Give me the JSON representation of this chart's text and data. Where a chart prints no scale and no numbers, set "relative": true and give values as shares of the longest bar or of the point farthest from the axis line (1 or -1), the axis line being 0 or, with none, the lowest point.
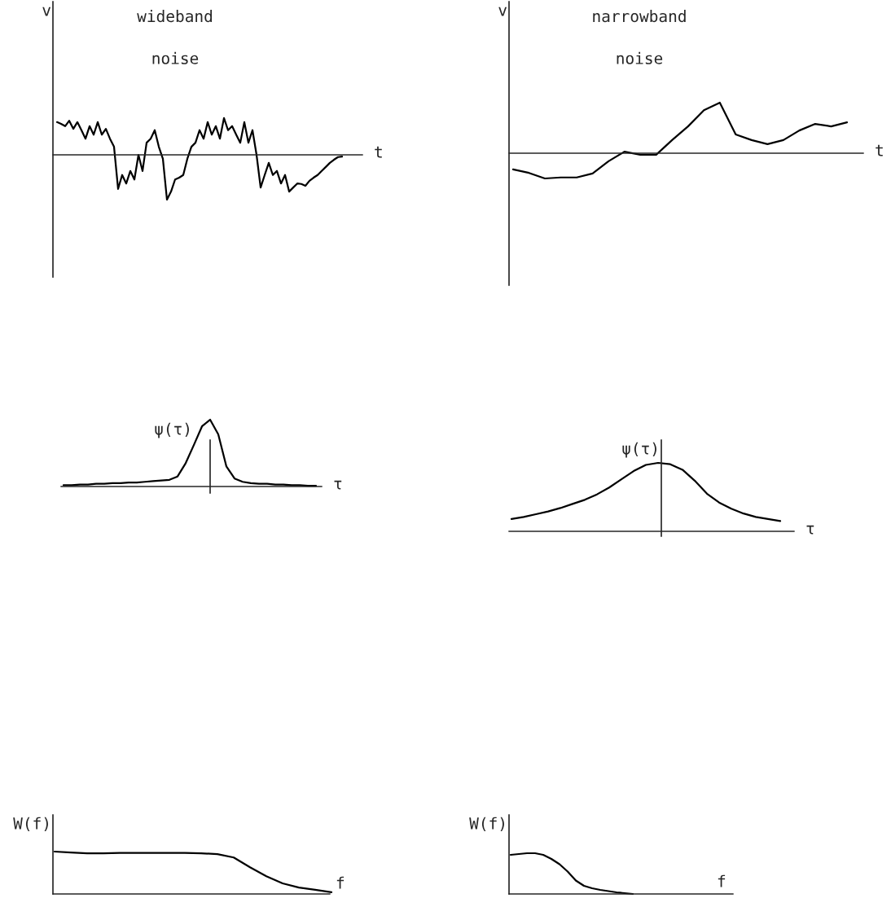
{
  "chart_data": [
    {
      "type": "line",
      "title": "wideband noise",
      "xlabel": "t",
      "ylabel": "v",
      "relative": true,
      "color": "#000000",
      "categories": [
        null,
        null,
        null,
        null,
        null,
        null,
        null,
        null,
        null,
        null,
        null,
        null,
        null,
        null,
        null,
        null,
        null,
        null,
        null,
        null,
        null,
        null,
        null,
        null,
        null,
        null,
        null,
        null,
        null,
        null,
        null,
        null,
        null,
        null,
        null,
        null,
        null,
        null,
        null,
        null,
        null,
        null,
        null,
        null,
        null,
        null,
        null,
        null,
        null,
        null,
        null,
        null,
        null,
        null,
        null,
        null,
        null,
        null,
        null,
        null,
        null,
        null,
        null,
        null,
        null,
        null,
        null,
        null,
        null,
        null,
        null
      ],
      "values": [
        0.73,
        0.69,
        0.64,
        0.76,
        0.58,
        0.73,
        0.55,
        0.36,
        0.64,
        0.45,
        0.73,
        0.45,
        0.58,
        0.36,
        0.18,
        -0.76,
        -0.45,
        -0.64,
        -0.36,
        -0.55,
        0,
        -0.36,
        0.27,
        0.36,
        0.55,
        0.18,
        -0.09,
        -1,
        -0.82,
        -0.55,
        -0.51,
        -0.45,
        -0.09,
        0.18,
        0.27,
        0.55,
        0.36,
        0.73,
        0.45,
        0.64,
        0.36,
        0.82,
        0.55,
        0.64,
        0.45,
        0.27,
        0.73,
        0.27,
        0.55,
        0,
        -0.73,
        -0.45,
        -0.18,
        -0.45,
        -0.36,
        -0.64,
        -0.45,
        -0.82,
        -0.73,
        -0.64,
        -0.65,
        -0.69,
        -0.58,
        -0.51,
        -0.45,
        -0.36,
        -0.27,
        -0.18,
        -0.11,
        -0.05,
        -0.04
      ]
    },
    {
      "type": "line",
      "title": "narrowband noise",
      "xlabel": "t",
      "ylabel": "v",
      "relative": true,
      "color": "#000000",
      "categories": [
        null,
        null,
        null,
        null,
        null,
        null,
        null,
        null,
        null,
        null,
        null,
        null,
        null,
        null,
        null,
        null,
        null,
        null,
        null,
        null,
        null,
        null
      ],
      "values": [
        -0.32,
        -0.39,
        -0.5,
        -0.48,
        -0.48,
        -0.4,
        -0.16,
        0.03,
        -0.03,
        -0.03,
        0.26,
        0.53,
        0.85,
        1,
        0.37,
        0.26,
        0.18,
        0.26,
        0.45,
        0.58,
        0.53,
        0.61
      ]
    },
    {
      "type": "line",
      "xlabel": "τ",
      "ylabel": "ψ(τ)",
      "relative": true,
      "color": "#000000",
      "categories": [
        null,
        null,
        null,
        null,
        null,
        null,
        null,
        null,
        null,
        null,
        null,
        null,
        null,
        null,
        null,
        null,
        null,
        null,
        null,
        null,
        null,
        null,
        null,
        null,
        null,
        null,
        null,
        null,
        null,
        null,
        null,
        null
      ],
      "values": [
        0.02,
        0.02,
        0.03,
        0.03,
        0.04,
        0.04,
        0.05,
        0.05,
        0.06,
        0.06,
        0.07,
        0.08,
        0.09,
        0.1,
        0.15,
        0.35,
        0.62,
        0.9,
        1,
        0.78,
        0.3,
        0.12,
        0.07,
        0.05,
        0.04,
        0.04,
        0.03,
        0.03,
        0.02,
        0.02,
        0.01,
        0.01
      ]
    },
    {
      "type": "line",
      "xlabel": "τ",
      "ylabel": "ψ(τ)",
      "relative": true,
      "color": "#000000",
      "categories": [
        null,
        null,
        null,
        null,
        null,
        null,
        null,
        null,
        null,
        null,
        null,
        null,
        null,
        null,
        null,
        null,
        null,
        null,
        null,
        null,
        null,
        null,
        null
      ],
      "values": [
        0.18,
        0.21,
        0.25,
        0.29,
        0.34,
        0.4,
        0.46,
        0.54,
        0.64,
        0.76,
        0.88,
        0.97,
        1,
        0.98,
        0.9,
        0.74,
        0.55,
        0.42,
        0.33,
        0.26,
        0.21,
        0.18,
        0.15
      ]
    },
    {
      "type": "line",
      "xlabel": "f",
      "ylabel": "W(f)",
      "relative": true,
      "color": "#000000",
      "categories": [
        null,
        null,
        null,
        null,
        null,
        null,
        null,
        null,
        null,
        null,
        null,
        null,
        null,
        null,
        null,
        null,
        null,
        null
      ],
      "values": [
        1,
        0.98,
        0.96,
        0.96,
        0.97,
        0.97,
        0.97,
        0.97,
        0.97,
        0.96,
        0.94,
        0.86,
        0.63,
        0.42,
        0.25,
        0.15,
        0.1,
        0.04
      ]
    },
    {
      "type": "line",
      "xlabel": "f",
      "ylabel": "W(f)",
      "relative": true,
      "color": "#000000",
      "categories": [
        null,
        null,
        null,
        null,
        null,
        null,
        null,
        null,
        null,
        null,
        null,
        null,
        null,
        null,
        null,
        null
      ],
      "values": [
        0.96,
        0.98,
        1,
        1,
        0.96,
        0.86,
        0.73,
        0.55,
        0.33,
        0.2,
        0.14,
        0.1,
        0.07,
        0.04,
        0.02,
        0
      ]
    }
  ]
}
